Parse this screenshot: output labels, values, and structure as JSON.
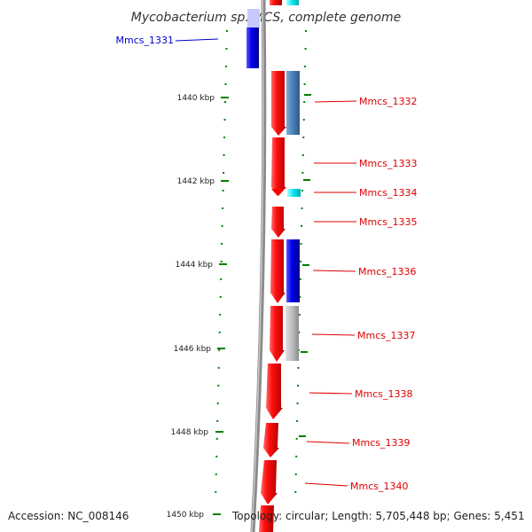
{
  "map": {
    "title": "Mycobacterium sp. MCS, complete genome",
    "position_labels": [
      "1440 kbp",
      "1442 kbp",
      "1444 kbp",
      "1446 kbp",
      "1448 kbp",
      "1450 kbp"
    ]
  },
  "genes": [
    {
      "id": "Mmcs_1331",
      "strand": "reverse",
      "color": "#0000dd"
    },
    {
      "id": "Mmcs_1332",
      "strand": "forward",
      "color": "#dd0000"
    },
    {
      "id": "Mmcs_1333",
      "strand": "forward",
      "color": "#dd0000"
    },
    {
      "id": "Mmcs_1334",
      "strand": "forward",
      "color": "#dd0000"
    },
    {
      "id": "Mmcs_1335",
      "strand": "forward",
      "color": "#dd0000"
    },
    {
      "id": "Mmcs_1336",
      "strand": "forward",
      "color": "#dd0000"
    },
    {
      "id": "Mmcs_1337",
      "strand": "forward",
      "color": "#dd0000"
    },
    {
      "id": "Mmcs_1338",
      "strand": "forward",
      "color": "#dd0000"
    },
    {
      "id": "Mmcs_1339",
      "strand": "forward",
      "color": "#dd0000"
    },
    {
      "id": "Mmcs_1340",
      "strand": "forward",
      "color": "#dd0000"
    }
  ],
  "colors": {
    "reverse_gene": "#0000dd",
    "forward_gene": "#dd0000",
    "cog_steelblue": "#4a7fb5",
    "cog_cyan": "#00e5ee",
    "cog_blue": "#0000ee",
    "cog_gray": "#b4b4b4",
    "backbone": "#888888",
    "ticks": "#008000"
  },
  "footer": {
    "accession": "Accession: NC_008146",
    "summary": "Topology: circular; Length: 5,705,448 bp; Genes: 5,451"
  }
}
